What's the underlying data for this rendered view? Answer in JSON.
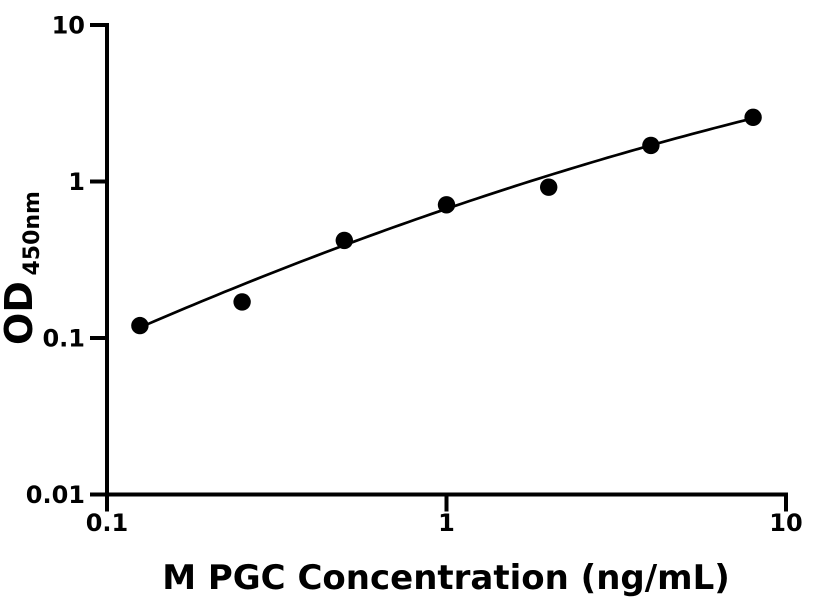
{
  "chart_data": {
    "type": "scatter",
    "title": "",
    "xlabel": "M PGC Concentration (ng/mL)",
    "ylabel_main": "OD",
    "ylabel_sub": "450nm",
    "xscale": "log",
    "yscale": "log",
    "xlim": [
      0.1,
      10
    ],
    "ylim": [
      0.01,
      10
    ],
    "grid": false,
    "legend": false,
    "x": [
      0.125,
      0.25,
      0.5,
      1,
      2,
      4,
      8
    ],
    "y": [
      0.12,
      0.17,
      0.42,
      0.71,
      0.92,
      1.7,
      2.57
    ],
    "x_tick_values": [
      0.1,
      1,
      10
    ],
    "x_tick_labels": [
      "0.1",
      "1",
      "10"
    ],
    "y_tick_values": [
      10,
      1,
      0.1,
      0.01
    ],
    "y_tick_labels": [
      "10",
      "1",
      "0.1",
      "0.01"
    ],
    "marker_color": "#000000",
    "line_color": "#000000",
    "axis_color": "#000000",
    "background_color": "#ffffff",
    "fit_curve": {
      "type": "quadratic_in_loglog",
      "equation": "log10(y) = a*log10(x)^2 + b*log10(x) + c",
      "a": -0.1102,
      "b": 0.7404,
      "c": -0.1744,
      "x_range": [
        0.125,
        8
      ]
    }
  }
}
